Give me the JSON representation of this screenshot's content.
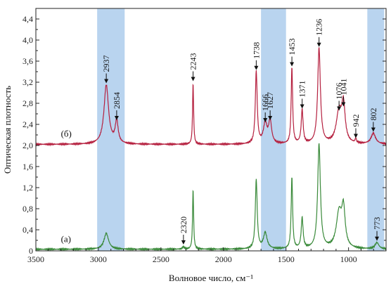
{
  "chart_data": {
    "type": "line",
    "title": "",
    "xlabel": "Волновое число, см⁻¹",
    "ylabel": "Оптическая плотность",
    "xlim": [
      3500,
      700
    ],
    "ylim": [
      0,
      4.6
    ],
    "x_reversed": true,
    "xticks": [
      3500,
      3000,
      2500,
      2000,
      1500,
      1000
    ],
    "yticks": [
      0,
      0.4,
      0.8,
      1.2,
      1.6,
      2.0,
      2.4,
      2.8,
      3.2,
      3.6,
      4.0,
      4.4
    ],
    "ytick_labels": [
      "0",
      "0,4",
      "0,8",
      "1,2",
      "1,6",
      "2,0",
      "2,4",
      "2,8",
      "3,2",
      "3,6",
      "4,0",
      "4,4"
    ],
    "grid": false,
    "highlight_bands": [
      {
        "from": 3010,
        "to": 2790
      },
      {
        "from": 1700,
        "to": 1500
      },
      {
        "from": 850,
        "to": 715
      }
    ],
    "series": [
      {
        "name": "(б)",
        "color": "#b5203f",
        "baseline": 2.02,
        "peaks": [
          {
            "x": 2937,
            "y": 3.14
          },
          {
            "x": 2854,
            "y": 2.44
          },
          {
            "x": 2243,
            "y": 3.18
          },
          {
            "x": 1738,
            "y": 3.39
          },
          {
            "x": 1666,
            "y": 2.4
          },
          {
            "x": 1627,
            "y": 2.44
          },
          {
            "x": 1453,
            "y": 3.46
          },
          {
            "x": 1371,
            "y": 2.66
          },
          {
            "x": 1236,
            "y": 3.83
          },
          {
            "x": 1076,
            "y": 2.62
          },
          {
            "x": 1041,
            "y": 2.7
          },
          {
            "x": 942,
            "y": 2.1
          },
          {
            "x": 802,
            "y": 2.22
          }
        ]
      },
      {
        "name": "(а)",
        "color": "#3a8a3a",
        "baseline": 0.03,
        "peaks": [
          {
            "x": 2937,
            "y": 0.33
          },
          {
            "x": 2320,
            "y": 0.08
          },
          {
            "x": 2243,
            "y": 1.17
          },
          {
            "x": 1738,
            "y": 1.34
          },
          {
            "x": 1666,
            "y": 0.33
          },
          {
            "x": 1453,
            "y": 1.38
          },
          {
            "x": 1371,
            "y": 0.61
          },
          {
            "x": 1236,
            "y": 2.01
          },
          {
            "x": 1076,
            "y": 0.7
          },
          {
            "x": 1041,
            "y": 0.72
          },
          {
            "x": 773,
            "y": 0.15
          }
        ]
      }
    ],
    "peak_labels": [
      {
        "text": "2937",
        "x": 2937,
        "series": 0
      },
      {
        "text": "2854",
        "x": 2854,
        "series": 0
      },
      {
        "text": "2243",
        "x": 2243,
        "series": 0
      },
      {
        "text": "1738",
        "x": 1738,
        "series": 0
      },
      {
        "text": "1666",
        "x": 1666,
        "series": 0
      },
      {
        "text": "1627",
        "x": 1627,
        "series": 0
      },
      {
        "text": "1453",
        "x": 1453,
        "series": 0
      },
      {
        "text": "1371",
        "x": 1371,
        "series": 0
      },
      {
        "text": "1236",
        "x": 1236,
        "series": 0
      },
      {
        "text": "1076",
        "x": 1076,
        "series": 0
      },
      {
        "text": "1041",
        "x": 1041,
        "series": 0
      },
      {
        "text": "942",
        "x": 942,
        "series": 0
      },
      {
        "text": "802",
        "x": 802,
        "series": 0
      },
      {
        "text": "2320",
        "x": 2320,
        "series": 1
      },
      {
        "text": "773",
        "x": 773,
        "series": 1
      }
    ]
  }
}
